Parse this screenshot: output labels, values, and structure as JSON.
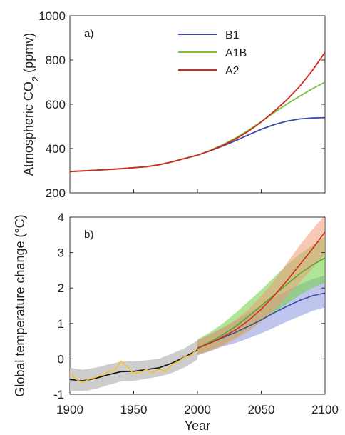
{
  "chart_data": [
    {
      "type": "line",
      "panel_label": "a)",
      "ylabel": "Atmospheric CO",
      "ylabel_subscript": "2",
      "ylabel_unit": "(ppmv)",
      "xlim": [
        1900,
        2100
      ],
      "ylim": [
        200,
        1000
      ],
      "yticks": [
        200,
        400,
        600,
        800,
        1000
      ],
      "legend_position": "top-center",
      "series": [
        {
          "name": "B1",
          "color": "#3a4aa6",
          "x": [
            1900,
            1920,
            1940,
            1960,
            1970,
            1980,
            1990,
            2000,
            2010,
            2020,
            2030,
            2040,
            2050,
            2060,
            2070,
            2080,
            2090,
            2100
          ],
          "y": [
            296,
            302,
            309,
            318,
            327,
            340,
            355,
            370,
            390,
            412,
            436,
            462,
            487,
            508,
            524,
            534,
            538,
            540
          ]
        },
        {
          "name": "A1B",
          "color": "#7ac143",
          "x": [
            1900,
            1920,
            1940,
            1960,
            1970,
            1980,
            1990,
            2000,
            2010,
            2020,
            2030,
            2040,
            2050,
            2060,
            2070,
            2080,
            2090,
            2100
          ],
          "y": [
            296,
            302,
            309,
            318,
            327,
            340,
            355,
            370,
            392,
            418,
            448,
            483,
            522,
            562,
            601,
            636,
            670,
            700
          ]
        },
        {
          "name": "A2",
          "color": "#d12b1f",
          "x": [
            1900,
            1920,
            1940,
            1960,
            1970,
            1980,
            1990,
            2000,
            2010,
            2020,
            2030,
            2040,
            2050,
            2060,
            2070,
            2080,
            2090,
            2100
          ],
          "y": [
            296,
            302,
            309,
            318,
            327,
            340,
            355,
            370,
            391,
            415,
            444,
            478,
            520,
            568,
            620,
            680,
            752,
            835
          ]
        }
      ]
    },
    {
      "type": "line",
      "panel_label": "b)",
      "xlabel": "Year",
      "ylabel": "Global temperature change (°C)",
      "xlim": [
        1900,
        2100
      ],
      "ylim": [
        -1,
        4
      ],
      "xticks": [
        1900,
        1950,
        2000,
        2050,
        2100
      ],
      "yticks": [
        -1,
        0,
        1,
        2,
        3,
        4
      ],
      "observations": {
        "color": "#f2c12e",
        "x": [
          1900,
          1905,
          1910,
          1915,
          1920,
          1925,
          1930,
          1935,
          1940,
          1945,
          1950,
          1955,
          1960,
          1965,
          1970,
          1975,
          1980,
          1985,
          1990,
          1995,
          2000,
          2005
        ],
        "y": [
          -0.42,
          -0.58,
          -0.66,
          -0.57,
          -0.52,
          -0.46,
          -0.36,
          -0.33,
          -0.06,
          -0.22,
          -0.42,
          -0.38,
          -0.3,
          -0.4,
          -0.29,
          -0.36,
          -0.15,
          -0.08,
          0.05,
          0.1,
          0.3,
          0.4
        ]
      },
      "historical": {
        "color": "#111111",
        "band_color": "#c8c8c8",
        "x": [
          1900,
          1910,
          1920,
          1930,
          1940,
          1950,
          1960,
          1970,
          1980,
          1990,
          2000
        ],
        "y": [
          -0.58,
          -0.62,
          -0.55,
          -0.45,
          -0.36,
          -0.35,
          -0.3,
          -0.25,
          -0.12,
          0.05,
          0.25
        ],
        "lower": [
          -0.92,
          -0.92,
          -0.85,
          -0.74,
          -0.64,
          -0.62,
          -0.56,
          -0.5,
          -0.4,
          -0.24,
          -0.02
        ],
        "upper": [
          -0.25,
          -0.31,
          -0.25,
          -0.16,
          -0.08,
          -0.07,
          -0.04,
          0.0,
          0.15,
          0.3,
          0.52
        ]
      },
      "series": [
        {
          "name": "B1",
          "color": "#3a4aa6",
          "band_color": "#8c96e0",
          "x": [
            2000,
            2010,
            2020,
            2030,
            2040,
            2050,
            2060,
            2070,
            2080,
            2090,
            2100
          ],
          "y": [
            0.3,
            0.45,
            0.6,
            0.75,
            0.92,
            1.1,
            1.3,
            1.48,
            1.65,
            1.78,
            1.86
          ],
          "lower": [
            0.1,
            0.22,
            0.35,
            0.45,
            0.58,
            0.72,
            0.88,
            1.05,
            1.2,
            1.35,
            1.45
          ],
          "upper": [
            0.52,
            0.7,
            0.88,
            1.08,
            1.3,
            1.5,
            1.72,
            1.92,
            2.1,
            2.25,
            2.35
          ]
        },
        {
          "name": "A1B",
          "color": "#55a82a",
          "band_color": "#6fcf3f",
          "x": [
            2000,
            2010,
            2020,
            2030,
            2040,
            2050,
            2060,
            2070,
            2080,
            2090,
            2100
          ],
          "y": [
            0.3,
            0.48,
            0.68,
            0.92,
            1.2,
            1.5,
            1.8,
            2.1,
            2.4,
            2.65,
            2.85
          ],
          "lower": [
            0.12,
            0.25,
            0.4,
            0.6,
            0.82,
            1.05,
            1.3,
            1.55,
            1.8,
            2.0,
            2.15
          ],
          "upper": [
            0.55,
            0.75,
            1.0,
            1.3,
            1.62,
            1.95,
            2.3,
            2.65,
            2.95,
            3.2,
            3.45
          ]
        },
        {
          "name": "A2",
          "color": "#d12b1f",
          "band_color": "#ef9a78",
          "x": [
            2000,
            2010,
            2020,
            2030,
            2040,
            2050,
            2060,
            2070,
            2080,
            2090,
            2100
          ],
          "y": [
            0.3,
            0.45,
            0.62,
            0.82,
            1.08,
            1.4,
            1.78,
            2.2,
            2.65,
            3.1,
            3.58
          ],
          "lower": [
            0.1,
            0.22,
            0.38,
            0.55,
            0.78,
            1.05,
            1.38,
            1.75,
            2.15,
            2.55,
            2.95
          ],
          "upper": [
            0.52,
            0.7,
            0.88,
            1.1,
            1.4,
            1.78,
            2.2,
            2.7,
            3.2,
            3.65,
            4.05
          ]
        }
      ]
    }
  ]
}
